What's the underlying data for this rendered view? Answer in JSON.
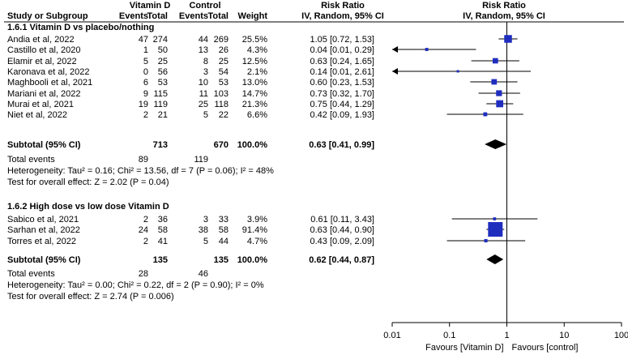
{
  "header": {
    "study_label": "Study or Subgroup",
    "group1": "Vitamin D",
    "group2": "Control",
    "events": "Events",
    "total": "Total",
    "weight": "Weight",
    "rr_title": "Risk Ratio",
    "rr_method": "IV, Random, 95% CI"
  },
  "chart_data": {
    "type": "forest",
    "scale": "log",
    "xlim": [
      0.01,
      100
    ],
    "ticks": [
      "0.01",
      "0.1",
      "1",
      "10",
      "100"
    ],
    "favours_left": "Favours [Vitamin D]",
    "favours_right": "Favours [control]",
    "subgroups": [
      {
        "title": "1.6.1 Vitamin D vs placebo/nothing",
        "studies": [
          {
            "name": "Andia et al, 2022",
            "e1": "47",
            "t1": "274",
            "e2": "44",
            "t2": "269",
            "weight": "25.5%",
            "ci_text": "1.05 [0.72, 1.53]",
            "rr": 1.05,
            "lo": 0.72,
            "hi": 1.53,
            "w": 25.5
          },
          {
            "name": "Castillo et al, 2020",
            "e1": "1",
            "t1": "50",
            "e2": "13",
            "t2": "26",
            "weight": "4.3%",
            "ci_text": "0.04 [0.01, 0.29]",
            "rr": 0.04,
            "lo": 0.01,
            "hi": 0.29,
            "w": 4.3
          },
          {
            "name": "Elamir et al, 2022",
            "e1": "5",
            "t1": "25",
            "e2": "8",
            "t2": "25",
            "weight": "12.5%",
            "ci_text": "0.63 [0.24, 1.65]",
            "rr": 0.63,
            "lo": 0.24,
            "hi": 1.65,
            "w": 12.5
          },
          {
            "name": "Karonava et al, 2022",
            "e1": "0",
            "t1": "56",
            "e2": "3",
            "t2": "54",
            "weight": "2.1%",
            "ci_text": "0.14 [0.01, 2.61]",
            "rr": 0.14,
            "lo": 0.01,
            "hi": 2.61,
            "w": 2.1
          },
          {
            "name": "Maghbooli et al, 2021",
            "e1": "6",
            "t1": "53",
            "e2": "10",
            "t2": "53",
            "weight": "13.0%",
            "ci_text": "0.60 [0.23, 1.53]",
            "rr": 0.6,
            "lo": 0.23,
            "hi": 1.53,
            "w": 13.0
          },
          {
            "name": "Mariani et al, 2022",
            "e1": "9",
            "t1": "115",
            "e2": "11",
            "t2": "103",
            "weight": "14.7%",
            "ci_text": "0.73 [0.32, 1.70]",
            "rr": 0.73,
            "lo": 0.32,
            "hi": 1.7,
            "w": 14.7
          },
          {
            "name": "Murai et al, 2021",
            "e1": "19",
            "t1": "119",
            "e2": "25",
            "t2": "118",
            "weight": "21.3%",
            "ci_text": "0.75 [0.44, 1.29]",
            "rr": 0.75,
            "lo": 0.44,
            "hi": 1.29,
            "w": 21.3
          },
          {
            "name": "Niet et al, 2022",
            "e1": "2",
            "t1": "21",
            "e2": "5",
            "t2": "22",
            "weight": "6.6%",
            "ci_text": "0.42 [0.09, 1.93]",
            "rr": 0.42,
            "lo": 0.09,
            "hi": 1.93,
            "w": 6.6
          }
        ],
        "subtotal": {
          "label": "Subtotal (95% CI)",
          "t1": "713",
          "t2": "670",
          "weight": "100.0%",
          "ci_text": "0.63 [0.41, 0.99]",
          "rr": 0.63,
          "lo": 0.41,
          "hi": 0.99
        },
        "total_events": {
          "label": "Total events",
          "e1": "89",
          "e2": "119"
        },
        "heterogeneity": "Heterogeneity: Tau² = 0.16; Chi² = 13.56, df = 7 (P = 0.06); I² = 48%",
        "overall": "Test for overall effect: Z = 2.02 (P = 0.04)"
      },
      {
        "title": "1.6.2 High dose vs low dose Vitamin D",
        "studies": [
          {
            "name": "Sabico et al, 2021",
            "e1": "2",
            "t1": "36",
            "e2": "3",
            "t2": "33",
            "weight": "3.9%",
            "ci_text": "0.61 [0.11, 3.43]",
            "rr": 0.61,
            "lo": 0.11,
            "hi": 3.43,
            "w": 3.9
          },
          {
            "name": "Sarhan et al, 2022",
            "e1": "24",
            "t1": "58",
            "e2": "38",
            "t2": "58",
            "weight": "91.4%",
            "ci_text": "0.63 [0.44, 0.90]",
            "rr": 0.63,
            "lo": 0.44,
            "hi": 0.9,
            "w": 91.4
          },
          {
            "name": "Torres et al, 2022",
            "e1": "2",
            "t1": "41",
            "e2": "5",
            "t2": "44",
            "weight": "4.7%",
            "ci_text": "0.43 [0.09, 2.09]",
            "rr": 0.43,
            "lo": 0.09,
            "hi": 2.09,
            "w": 4.7
          }
        ],
        "subtotal": {
          "label": "Subtotal (95% CI)",
          "t1": "135",
          "t2": "135",
          "weight": "100.0%",
          "ci_text": "0.62 [0.44, 0.87]",
          "rr": 0.62,
          "lo": 0.44,
          "hi": 0.87
        },
        "total_events": {
          "label": "Total events",
          "e1": "28",
          "e2": "46"
        },
        "heterogeneity": "Heterogeneity: Tau² = 0.00; Chi² = 0.22, df = 2 (P = 0.90); I² = 0%",
        "overall": "Test for overall effect: Z = 2.74 (P = 0.006)"
      }
    ]
  },
  "colors": {
    "square": "#1f2dbf",
    "line": "#000000",
    "diamond": "#000000"
  }
}
